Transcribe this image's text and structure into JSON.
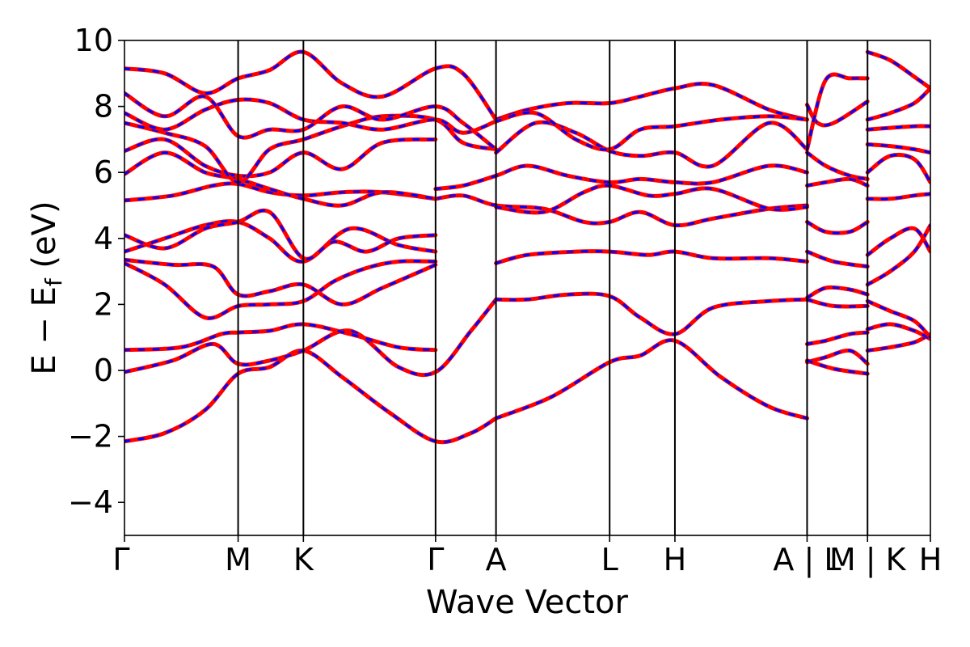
{
  "chart_data": {
    "type": "line",
    "title": "",
    "xlabel": "Wave Vector",
    "ylabel_main": "E − E",
    "ylabel_sub": "f",
    "ylabel_unit": " (eV)",
    "ylim": [
      -5,
      10
    ],
    "yticks": [
      -4,
      -2,
      0,
      2,
      4,
      6,
      8,
      10
    ],
    "ytick_labels": [
      "−4",
      "−2",
      "0",
      "2",
      "4",
      "6",
      "8",
      "10"
    ],
    "xlim": [
      0,
      1
    ],
    "kpoints": [
      {
        "label": "Γ",
        "x": 0.0
      },
      {
        "label": "M",
        "x": 0.141
      },
      {
        "label": "K",
        "x": 0.222
      },
      {
        "label": "Γ",
        "x": 0.386
      },
      {
        "label": "A",
        "x": 0.461
      },
      {
        "label": "L",
        "x": 0.602
      },
      {
        "label": "H",
        "x": 0.683
      },
      {
        "label": "A | L",
        "x": 0.847
      },
      {
        "label": "M | K",
        "x": 0.922
      },
      {
        "label": "H",
        "x": 1.0
      }
    ],
    "series_colors": {
      "primary": "#ff0000",
      "secondary": "#0000ff"
    },
    "bands": [
      {
        "x": [
          0,
          0.05,
          0.1,
          0.141,
          0.18,
          0.222,
          0.27,
          0.33,
          0.386,
          0.43,
          0.461
        ],
        "y": [
          -2.15,
          -1.9,
          -1.2,
          -0.1,
          0.1,
          0.6,
          -0.2,
          -1.3,
          -2.15,
          -1.9,
          -1.45
        ]
      },
      {
        "x": [
          0.461,
          0.53,
          0.602,
          0.64,
          0.683,
          0.74,
          0.8,
          0.847
        ],
        "y": [
          -1.45,
          -0.8,
          0.25,
          0.45,
          0.9,
          -0.2,
          -1.1,
          -1.45
        ]
      },
      {
        "x": [
          0,
          0.06,
          0.11,
          0.141,
          0.18,
          0.222,
          0.28,
          0.34,
          0.386,
          0.43,
          0.461
        ],
        "y": [
          -0.05,
          0.3,
          0.8,
          0.2,
          0.3,
          0.6,
          1.2,
          0.1,
          -0.05,
          1.2,
          2.15
        ]
      },
      {
        "x": [
          0,
          0.07,
          0.12,
          0.141,
          0.18,
          0.222,
          0.28,
          0.34,
          0.386
        ],
        "y": [
          0.62,
          0.7,
          1.1,
          1.15,
          1.2,
          1.4,
          1.1,
          0.7,
          0.62
        ]
      },
      {
        "x": [
          0,
          0.05,
          0.1,
          0.141,
          0.18,
          0.222,
          0.26,
          0.3,
          0.34,
          0.386
        ],
        "y": [
          3.25,
          2.6,
          1.6,
          1.95,
          2.0,
          2.1,
          2.7,
          3.1,
          3.3,
          3.3
        ]
      },
      {
        "x": [
          0,
          0.06,
          0.11,
          0.141,
          0.18,
          0.222,
          0.27,
          0.32,
          0.386
        ],
        "y": [
          3.35,
          3.2,
          3.15,
          2.3,
          2.4,
          2.6,
          2.0,
          2.5,
          3.2
        ]
      },
      {
        "x": [
          0.461,
          0.5,
          0.55,
          0.602,
          0.64,
          0.683,
          0.73,
          0.8,
          0.847
        ],
        "y": [
          2.15,
          2.15,
          2.3,
          2.25,
          1.6,
          1.1,
          1.9,
          2.1,
          2.15
        ]
      },
      {
        "x": [
          0.461,
          0.5,
          0.56,
          0.602,
          0.65,
          0.683,
          0.73,
          0.8,
          0.847
        ],
        "y": [
          3.25,
          3.5,
          3.6,
          3.6,
          3.5,
          3.6,
          3.4,
          3.4,
          3.3
        ]
      },
      {
        "x": [
          0.386,
          0.42,
          0.461,
          0.52,
          0.57,
          0.602,
          0.64,
          0.683,
          0.73,
          0.8,
          0.847
        ],
        "y": [
          5.2,
          5.3,
          5.0,
          4.9,
          4.5,
          4.5,
          4.8,
          4.4,
          4.6,
          4.9,
          5.0
        ]
      },
      {
        "x": [
          0,
          0.05,
          0.1,
          0.141,
          0.18,
          0.222,
          0.28,
          0.34,
          0.386
        ],
        "y": [
          3.6,
          4.0,
          4.4,
          4.5,
          4.0,
          3.3,
          4.3,
          3.8,
          3.6
        ]
      },
      {
        "x": [
          0,
          0.05,
          0.1,
          0.141,
          0.18,
          0.222,
          0.26,
          0.3,
          0.34,
          0.386
        ],
        "y": [
          4.1,
          3.7,
          4.3,
          4.5,
          4.8,
          3.4,
          3.9,
          3.6,
          4.0,
          4.1
        ]
      },
      {
        "x": [
          0,
          0.06,
          0.11,
          0.141,
          0.18,
          0.222,
          0.27,
          0.32,
          0.386
        ],
        "y": [
          5.15,
          5.3,
          5.6,
          5.65,
          5.4,
          5.3,
          5.4,
          5.4,
          5.2
        ]
      },
      {
        "x": [
          0,
          0.05,
          0.1,
          0.141,
          0.18,
          0.222,
          0.27,
          0.32,
          0.386
        ],
        "y": [
          5.95,
          6.6,
          6.0,
          5.8,
          5.5,
          5.2,
          5.0,
          5.4,
          5.2
        ]
      },
      {
        "x": [
          0.386,
          0.42,
          0.461,
          0.5,
          0.55,
          0.602,
          0.64,
          0.683,
          0.73,
          0.8,
          0.847
        ],
        "y": [
          5.5,
          5.6,
          5.9,
          6.2,
          5.9,
          5.7,
          5.8,
          5.7,
          5.7,
          6.2,
          6.0
        ]
      },
      {
        "x": [
          0.461,
          0.52,
          0.57,
          0.602,
          0.65,
          0.683,
          0.73,
          0.8,
          0.847
        ],
        "y": [
          4.95,
          4.8,
          5.4,
          5.6,
          5.3,
          5.35,
          5.5,
          4.9,
          4.95
        ]
      },
      {
        "x": [
          0,
          0.05,
          0.1,
          0.141,
          0.18,
          0.222,
          0.27,
          0.32,
          0.386
        ],
        "y": [
          6.65,
          7.0,
          6.2,
          5.9,
          6.0,
          6.6,
          6.1,
          6.9,
          7.0
        ]
      },
      {
        "x": [
          0,
          0.05,
          0.1,
          0.141,
          0.18,
          0.222,
          0.27,
          0.32,
          0.386,
          0.42,
          0.461
        ],
        "y": [
          7.5,
          7.2,
          6.8,
          5.7,
          6.7,
          7.0,
          7.4,
          7.7,
          7.6,
          6.9,
          6.7
        ]
      },
      {
        "x": [
          0,
          0.05,
          0.1,
          0.141,
          0.18,
          0.222,
          0.27,
          0.32,
          0.386,
          0.42,
          0.461
        ],
        "y": [
          7.8,
          7.3,
          7.9,
          8.2,
          8.1,
          7.6,
          7.5,
          7.3,
          7.6,
          7.2,
          7.55
        ]
      },
      {
        "x": [
          0,
          0.05,
          0.1,
          0.141,
          0.18,
          0.222,
          0.27,
          0.32,
          0.386,
          0.42,
          0.461
        ],
        "y": [
          8.4,
          7.7,
          8.3,
          7.1,
          7.3,
          7.3,
          8.0,
          7.6,
          8.0,
          7.5,
          6.7
        ]
      },
      {
        "x": [
          0,
          0.05,
          0.1,
          0.141,
          0.18,
          0.222,
          0.27,
          0.32,
          0.386,
          0.42,
          0.461
        ],
        "y": [
          9.15,
          9.0,
          8.4,
          8.85,
          9.1,
          9.65,
          8.7,
          8.3,
          9.15,
          9.0,
          7.6
        ]
      },
      {
        "x": [
          0.461,
          0.5,
          0.55,
          0.602,
          0.64,
          0.683,
          0.73,
          0.8,
          0.847
        ],
        "y": [
          7.6,
          7.9,
          8.1,
          8.1,
          8.3,
          8.55,
          8.65,
          7.9,
          7.6
        ]
      },
      {
        "x": [
          0.461,
          0.51,
          0.56,
          0.602,
          0.64,
          0.683,
          0.73,
          0.8,
          0.847
        ],
        "y": [
          6.6,
          7.5,
          7.2,
          6.65,
          6.5,
          6.6,
          6.2,
          7.5,
          6.7
        ]
      },
      {
        "x": [
          0.461,
          0.51,
          0.56,
          0.602,
          0.64,
          0.683,
          0.74,
          0.8,
          0.847
        ],
        "y": [
          7.55,
          7.8,
          7.0,
          6.7,
          7.3,
          7.4,
          7.6,
          7.7,
          7.6
        ]
      },
      {
        "x": [
          0.847,
          0.87,
          0.9,
          0.922
        ],
        "y": [
          0.8,
          0.9,
          1.1,
          1.15
        ]
      },
      {
        "x": [
          0.847,
          0.87,
          0.9,
          0.922
        ],
        "y": [
          0.25,
          0.4,
          0.6,
          0.2
        ]
      },
      {
        "x": [
          0.847,
          0.88,
          0.922
        ],
        "y": [
          0.3,
          0.05,
          -0.1
        ]
      },
      {
        "x": [
          0.847,
          0.87,
          0.9,
          0.922
        ],
        "y": [
          2.2,
          2.5,
          2.45,
          2.3
        ]
      },
      {
        "x": [
          0.847,
          0.88,
          0.922
        ],
        "y": [
          2.15,
          1.95,
          1.95
        ]
      },
      {
        "x": [
          0.847,
          0.88,
          0.922
        ],
        "y": [
          3.6,
          3.3,
          3.15
        ]
      },
      {
        "x": [
          0.847,
          0.87,
          0.9,
          0.922
        ],
        "y": [
          4.5,
          4.2,
          4.2,
          4.5
        ]
      },
      {
        "x": [
          0.847,
          0.87,
          0.9,
          0.922
        ],
        "y": [
          5.6,
          5.7,
          5.8,
          5.6
        ]
      },
      {
        "x": [
          0.847,
          0.87,
          0.9,
          0.922
        ],
        "y": [
          6.6,
          6.2,
          5.9,
          5.8
        ]
      },
      {
        "x": [
          0.847,
          0.86,
          0.88,
          0.922
        ],
        "y": [
          8.05,
          7.5,
          7.5,
          8.15
        ]
      },
      {
        "x": [
          0.847,
          0.87,
          0.9,
          0.922
        ],
        "y": [
          6.7,
          8.8,
          8.85,
          8.85
        ]
      },
      {
        "x": [
          0.922,
          0.95,
          0.98,
          1.0
        ],
        "y": [
          0.6,
          0.7,
          0.85,
          1.1
        ]
      },
      {
        "x": [
          0.922,
          0.95,
          0.98,
          1.0
        ],
        "y": [
          1.25,
          1.4,
          1.2,
          0.95
        ]
      },
      {
        "x": [
          0.922,
          0.95,
          0.98,
          1.0
        ],
        "y": [
          2.1,
          1.8,
          1.5,
          1.0
        ]
      },
      {
        "x": [
          0.922,
          0.95,
          0.98,
          1.0
        ],
        "y": [
          2.6,
          3.0,
          3.6,
          4.4
        ]
      },
      {
        "x": [
          0.922,
          0.95,
          0.98,
          1.0
        ],
        "y": [
          3.5,
          4.0,
          4.3,
          3.6
        ]
      },
      {
        "x": [
          0.922,
          0.95,
          0.98,
          1.0
        ],
        "y": [
          5.2,
          5.2,
          5.3,
          5.35
        ]
      },
      {
        "x": [
          0.922,
          0.95,
          0.98,
          1.0
        ],
        "y": [
          6.0,
          6.5,
          6.4,
          5.7
        ]
      },
      {
        "x": [
          0.922,
          0.95,
          0.98,
          1.0
        ],
        "y": [
          6.85,
          6.8,
          6.7,
          6.6
        ]
      },
      {
        "x": [
          0.922,
          0.95,
          0.98,
          1.0
        ],
        "y": [
          7.3,
          7.35,
          7.4,
          7.4
        ]
      },
      {
        "x": [
          0.922,
          0.95,
          0.98,
          1.0
        ],
        "y": [
          9.65,
          9.4,
          8.9,
          8.55
        ]
      },
      {
        "x": [
          0.922,
          0.95,
          0.98,
          1.0
        ],
        "y": [
          7.6,
          7.8,
          8.1,
          8.55
        ]
      }
    ]
  }
}
